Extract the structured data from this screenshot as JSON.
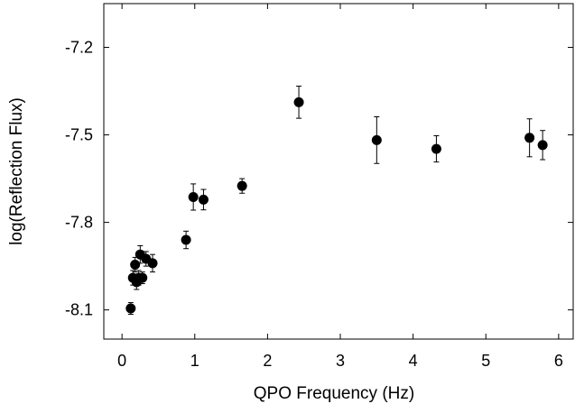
{
  "chart_data": {
    "type": "scatter",
    "title": "",
    "xlabel": "QPO Frequency (Hz)",
    "ylabel": "log(Reflection Flux)",
    "xlim": [
      -0.25,
      6.2
    ],
    "ylim": [
      -8.2,
      -7.05
    ],
    "x_ticks": [
      0,
      1,
      2,
      3,
      4,
      5,
      6
    ],
    "x_tick_labels": [
      "0",
      "1",
      "2",
      "3",
      "4",
      "5",
      "6"
    ],
    "y_ticks": [
      -7.2,
      -7.5,
      -7.8,
      -8.1
    ],
    "y_tick_labels": [
      "-7.2",
      "-7.5",
      "-7.8",
      "-8.1"
    ],
    "grid": false,
    "legend": "none",
    "marker_color": "#000000",
    "series": [
      {
        "points": [
          {
            "x": 0.12,
            "y": -8.095,
            "err": 0.02
          },
          {
            "x": 0.15,
            "y": -7.99,
            "err": 0.025
          },
          {
            "x": 0.18,
            "y": -7.945,
            "err": 0.025
          },
          {
            "x": 0.2,
            "y": -8.005,
            "err": 0.025
          },
          {
            "x": 0.23,
            "y": -7.99,
            "err": 0.025
          },
          {
            "x": 0.25,
            "y": -7.91,
            "err": 0.03
          },
          {
            "x": 0.28,
            "y": -7.99,
            "err": 0.02
          },
          {
            "x": 0.33,
            "y": -7.925,
            "err": 0.025
          },
          {
            "x": 0.42,
            "y": -7.94,
            "err": 0.03
          },
          {
            "x": 0.88,
            "y": -7.86,
            "err": 0.03
          },
          {
            "x": 0.98,
            "y": -7.713,
            "err": 0.045
          },
          {
            "x": 1.12,
            "y": -7.722,
            "err": 0.035
          },
          {
            "x": 1.65,
            "y": -7.675,
            "err": 0.025
          },
          {
            "x": 2.43,
            "y": -7.388,
            "err": 0.055
          },
          {
            "x": 3.5,
            "y": -7.518,
            "err": 0.08
          },
          {
            "x": 4.32,
            "y": -7.548,
            "err": 0.045
          },
          {
            "x": 5.6,
            "y": -7.51,
            "err": 0.065
          },
          {
            "x": 5.78,
            "y": -7.535,
            "err": 0.05
          }
        ]
      }
    ]
  }
}
